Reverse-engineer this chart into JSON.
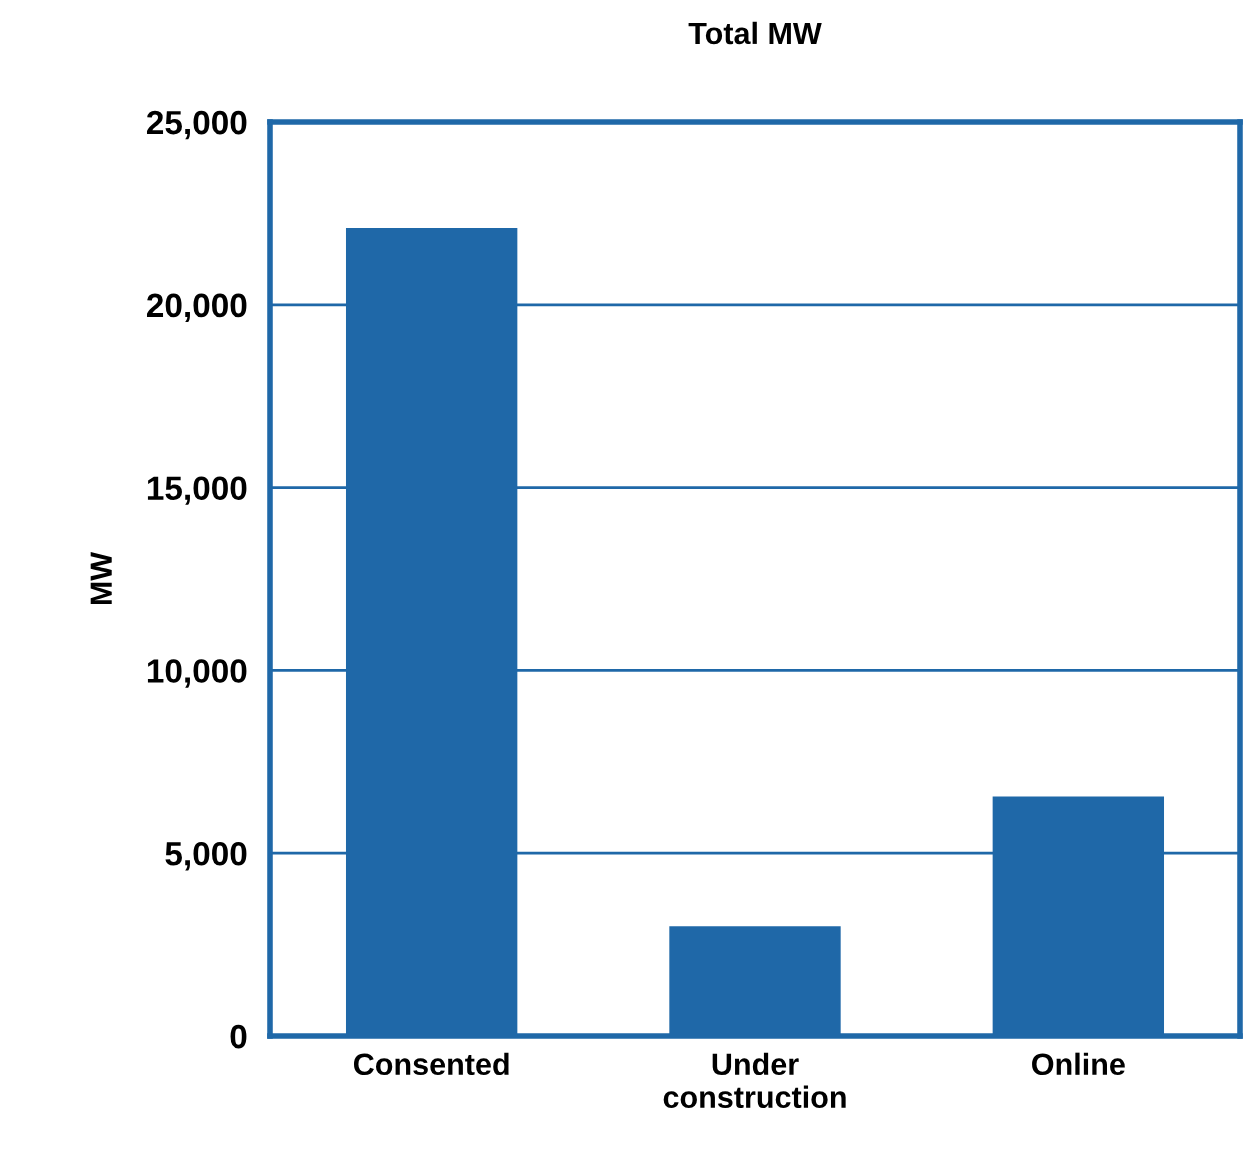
{
  "chart_data": {
    "type": "bar",
    "title": "Total MW",
    "ylabel": "MW",
    "categories": [
      "Consented",
      "Under\nconstruction",
      "Online"
    ],
    "values": [
      22100,
      3000,
      6550
    ],
    "color": "#1f68a8",
    "ylim": [
      0,
      25000
    ],
    "yticks": [
      {
        "value": 0,
        "label": "0"
      },
      {
        "value": 5000,
        "label": "5,000"
      },
      {
        "value": 10000,
        "label": "10,000"
      },
      {
        "value": 15000,
        "label": "15,000"
      },
      {
        "value": 20000,
        "label": "20,000"
      },
      {
        "value": 25000,
        "label": "25,000"
      }
    ],
    "grid": "y",
    "legend": false
  }
}
